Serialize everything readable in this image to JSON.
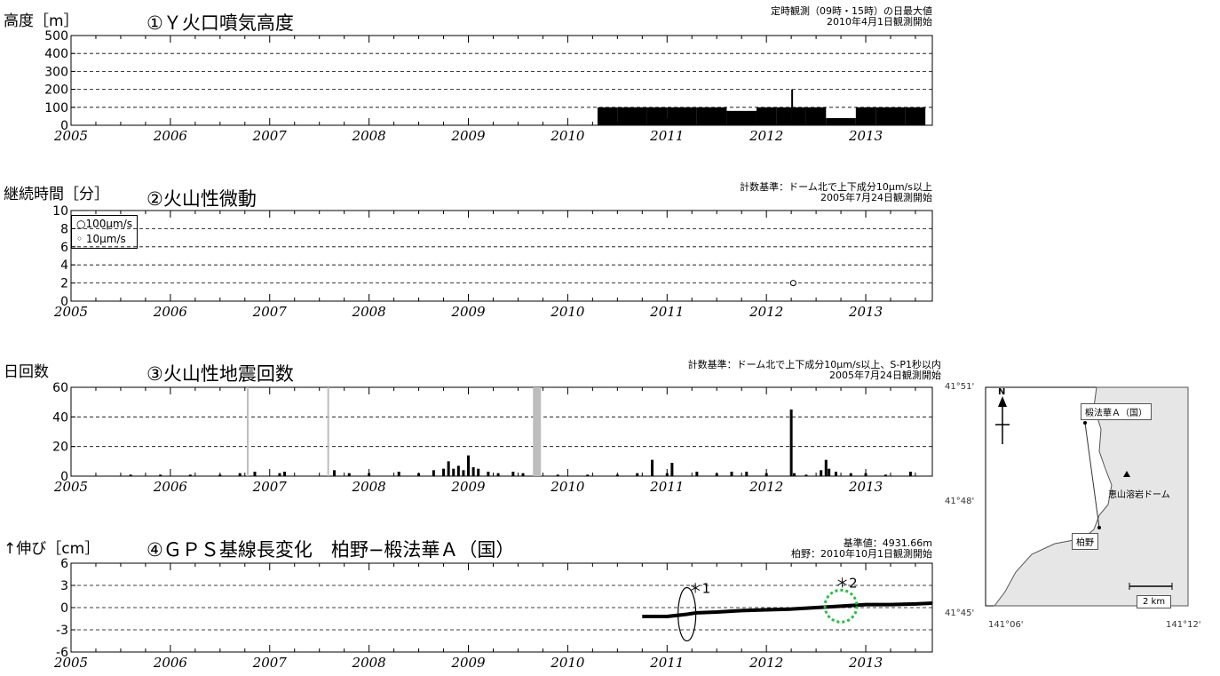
{
  "panels": [
    {
      "id": "p1",
      "ylabel": "高度［m］",
      "title": "①Ｙ火口噴気高度",
      "note1": "定時観測（09時・15時）の日最大値",
      "note2": "2010年4月1日観測開始"
    },
    {
      "id": "p2",
      "ylabel": "継続時間［分］",
      "title": "②火山性微動",
      "note1": "計数基準：ドーム北で上下成分10μm/s以上",
      "note2": "2005年7月24日観測開始",
      "legend1": "○100μm/s",
      "legend2": "◦ 10μm/s"
    },
    {
      "id": "p3",
      "ylabel": "日回数",
      "title": "③火山性地震回数",
      "note1": "計数基準：ドーム北で上下成分10μm/s以上、S-P1秒以内",
      "note2": "2005年7月24日観測開始"
    },
    {
      "id": "p4",
      "ylabel": "↑伸び［cm］",
      "title": "④ＧＰＳ基線長変化　柏野−椴法華Ａ（国）",
      "note1": "基準値：4931.66m",
      "note2": "柏野：2010年10月1日観測開始",
      "ann1": "＊1",
      "ann2": "＊2"
    }
  ],
  "map": {
    "lat_top": "41°51'",
    "lat_mid": "41°48'",
    "lat_bot": "41°45'",
    "lon_left": "141°06'",
    "lon_right": "141°12'",
    "north": "N",
    "station1": "椴法華Ａ（国）",
    "station2": "柏野",
    "dome": "恵山溶岩ドーム",
    "scale": "2 km"
  },
  "chart_data": [
    {
      "type": "bar",
      "title": "①Ｙ火口噴気高度",
      "ylabel": "高度［m］",
      "x_ticks": [
        "2005",
        "2006",
        "2007",
        "2008",
        "2009",
        "2010",
        "2011",
        "2012",
        "2013"
      ],
      "xlim": [
        2005.0,
        2013.67
      ],
      "ylim": [
        0,
        500
      ],
      "y_ticks": [
        0,
        100,
        200,
        300,
        400,
        500
      ],
      "grid": "dashed horizontal",
      "observation_start": 2010.25,
      "typical_daily_max": 100,
      "series": [
        {
          "x": [
            2010.3,
            2010.5,
            2010.8,
            2011.0,
            2011.3,
            2011.6,
            2011.9,
            2012.1,
            2012.25,
            2012.4,
            2012.6,
            2012.9,
            2013.1,
            2013.4,
            2013.6
          ],
          "y": [
            100,
            100,
            100,
            100,
            100,
            80,
            100,
            100,
            200,
            100,
            40,
            100,
            100,
            100,
            50
          ]
        }
      ]
    },
    {
      "type": "scatter",
      "title": "②火山性微動",
      "ylabel": "継続時間［分］",
      "x_ticks": [
        "2005",
        "2006",
        "2007",
        "2008",
        "2009",
        "2010",
        "2011",
        "2012",
        "2013"
      ],
      "xlim": [
        2005.0,
        2013.67
      ],
      "ylim": [
        0,
        10
      ],
      "y_ticks": [
        0,
        2,
        4,
        6,
        8,
        10
      ],
      "grid": "dashed horizontal",
      "legend": [
        "○100μm/s",
        "◦ 10μm/s"
      ],
      "legend_position": "top-left",
      "series": [
        {
          "x": [
            2012.27
          ],
          "y": [
            2.0
          ]
        }
      ]
    },
    {
      "type": "bar",
      "title": "③火山性地震回数",
      "ylabel": "日回数",
      "x_ticks": [
        "2005",
        "2006",
        "2007",
        "2008",
        "2009",
        "2010",
        "2011",
        "2012",
        "2013"
      ],
      "xlim": [
        2005.0,
        2013.67
      ],
      "ylim": [
        0,
        60
      ],
      "y_ticks": [
        0,
        20,
        40,
        60
      ],
      "grid": "dashed horizontal",
      "gap_periods": [
        [
          2006.77,
          2006.78
        ],
        [
          2007.58,
          2007.59
        ],
        [
          2009.65,
          2009.73
        ]
      ],
      "series": [
        {
          "x": [
            2005.6,
            2005.9,
            2006.2,
            2006.5,
            2006.7,
            2006.85,
            2007.1,
            2007.15,
            2007.65,
            2007.8,
            2008.0,
            2008.3,
            2008.5,
            2008.65,
            2008.75,
            2008.8,
            2008.85,
            2008.9,
            2008.95,
            2009.0,
            2009.05,
            2009.1,
            2009.2,
            2009.3,
            2009.45,
            2009.55,
            2009.9,
            2010.2,
            2010.5,
            2010.7,
            2010.85,
            2011.0,
            2011.05,
            2011.3,
            2011.5,
            2011.65,
            2011.8,
            2012.0,
            2012.25,
            2012.28,
            2012.4,
            2012.55,
            2012.6,
            2012.63,
            2012.7,
            2012.85,
            2013.0,
            2013.2,
            2013.45
          ],
          "y": [
            1,
            1,
            1,
            1,
            2,
            3,
            2,
            3,
            4,
            2,
            2,
            3,
            2,
            4,
            5,
            10,
            5,
            7,
            4,
            14,
            6,
            5,
            3,
            2,
            3,
            2,
            1,
            1,
            1,
            2,
            11,
            2,
            9,
            3,
            2,
            3,
            3,
            2,
            45,
            2,
            1,
            4,
            11,
            5,
            3,
            2,
            2,
            1,
            3
          ]
        }
      ]
    },
    {
      "type": "scatter",
      "title": "④ＧＰＳ基線長変化　柏野−椴法華Ａ（国）",
      "ylabel": "↑伸び［cm］",
      "x_ticks": [
        "2005",
        "2006",
        "2007",
        "2008",
        "2009",
        "2010",
        "2011",
        "2012",
        "2013"
      ],
      "xlim": [
        2005.0,
        2013.67
      ],
      "ylim": [
        -6,
        6
      ],
      "y_ticks": [
        -6,
        -3,
        0,
        3,
        6
      ],
      "grid": "dashed horizontal",
      "annotations": [
        "＊1",
        "＊2"
      ],
      "series": [
        {
          "x": [
            2010.75,
            2011.0,
            2011.2,
            2011.3,
            2011.5,
            2011.75,
            2012.0,
            2012.25,
            2012.5,
            2012.75,
            2013.0,
            2013.25,
            2013.5,
            2013.67
          ],
          "y": [
            -1.2,
            -1.2,
            -0.9,
            -0.7,
            -0.6,
            -0.4,
            -0.3,
            -0.2,
            0.0,
            0.2,
            0.4,
            0.4,
            0.5,
            0.6
          ]
        }
      ]
    }
  ]
}
